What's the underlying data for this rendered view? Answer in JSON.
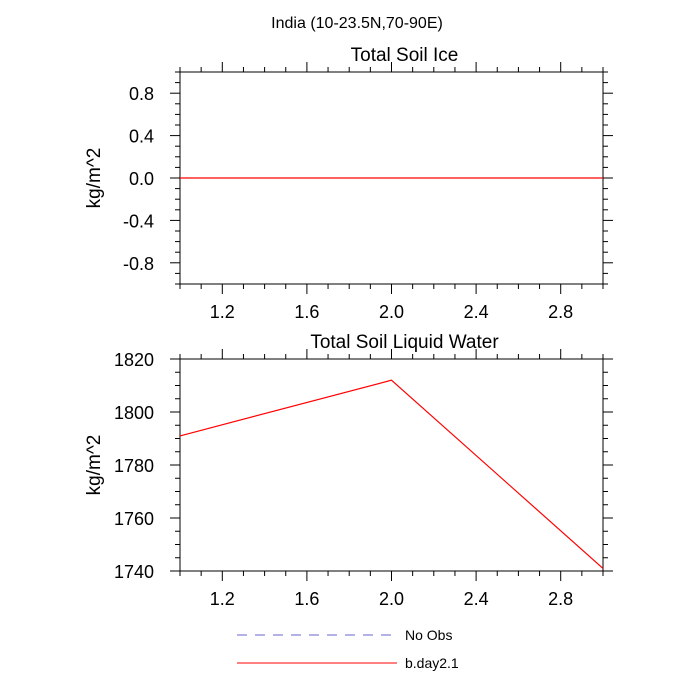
{
  "figure_title": "India (10-23.5N,70-90E)",
  "chart_data": [
    {
      "type": "line",
      "title": "Total Soil Ice",
      "xlabel": "",
      "ylabel": "kg/m^2",
      "xlim": [
        1.0,
        3.0
      ],
      "ylim": [
        -1.0,
        1.0
      ],
      "x_ticks": [
        "1.2",
        "1.6",
        "2.0",
        "2.4",
        "2.8"
      ],
      "y_ticks": [
        "0.8",
        "0.4",
        "0.0",
        "-0.4",
        "-0.8"
      ],
      "grid": false,
      "series": [
        {
          "name": "b.day2.1",
          "color": "#ff0000",
          "x": [
            1,
            2,
            3
          ],
          "y": [
            0.0,
            0.0,
            0.0
          ]
        }
      ]
    },
    {
      "type": "line",
      "title": "Total Soil Liquid Water",
      "xlabel": "",
      "ylabel": "kg/m^2",
      "xlim": [
        1.0,
        3.0
      ],
      "ylim": [
        1740,
        1820
      ],
      "x_ticks": [
        "1.2",
        "1.6",
        "2.0",
        "2.4",
        "2.8"
      ],
      "y_ticks": [
        "1820",
        "1800",
        "1780",
        "1760",
        "1740"
      ],
      "grid": false,
      "series": [
        {
          "name": "b.day2.1",
          "color": "#ff0000",
          "x": [
            1,
            2,
            3
          ],
          "y": [
            1791,
            1812,
            1741
          ]
        }
      ]
    }
  ],
  "legend": {
    "placement": "bottom-center",
    "items": [
      {
        "label": "No Obs",
        "color": "#6666cc",
        "style": "dashed"
      },
      {
        "label": "b.day2.1",
        "color": "#ff0000",
        "style": "solid"
      }
    ]
  }
}
